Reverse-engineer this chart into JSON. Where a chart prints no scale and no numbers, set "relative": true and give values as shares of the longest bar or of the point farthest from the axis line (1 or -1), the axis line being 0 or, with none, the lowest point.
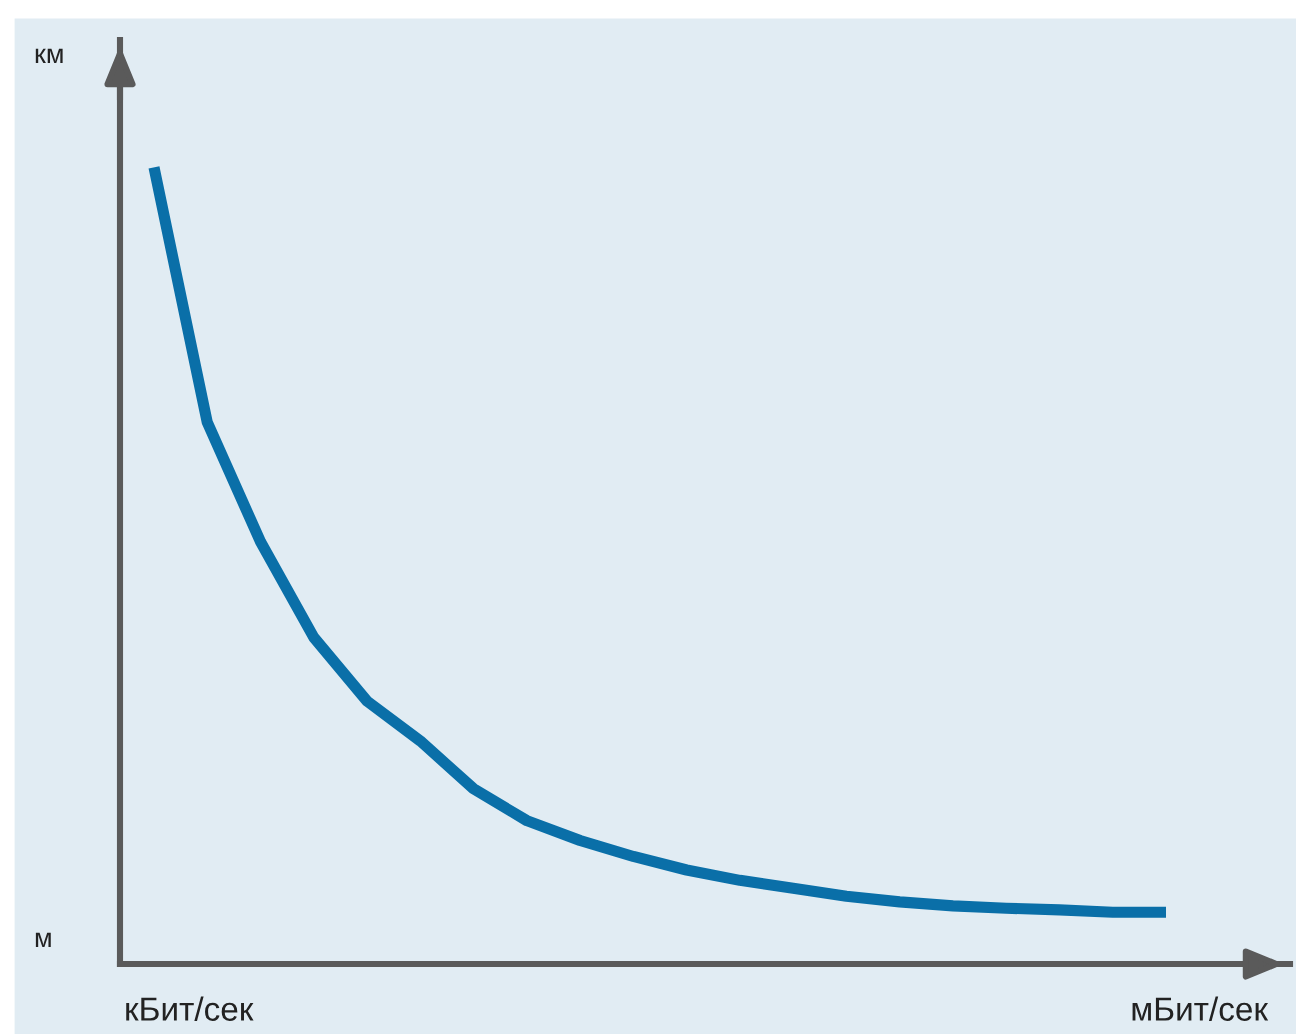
{
  "chart_data": {
    "type": "line",
    "relative": true,
    "categories": [
      null,
      null,
      null,
      null,
      null,
      null,
      null,
      null,
      null,
      null,
      null,
      null,
      null,
      null,
      null,
      null,
      null,
      null,
      null,
      null
    ],
    "series": [
      {
        "color": "#0a6fa8",
        "values": [
          1,
          0.68,
          0.53,
          0.41,
          0.33,
          0.28,
          0.22,
          0.18,
          0.155,
          0.135,
          0.118,
          0.105,
          0.095,
          0.085,
          0.078,
          0.073,
          0.07,
          0.068,
          0.065,
          0.065
        ]
      }
    ],
    "annotations": [
      "км",
      "м",
      "кБит/сек",
      "мБит/сек"
    ],
    "line_style": "solid"
  }
}
